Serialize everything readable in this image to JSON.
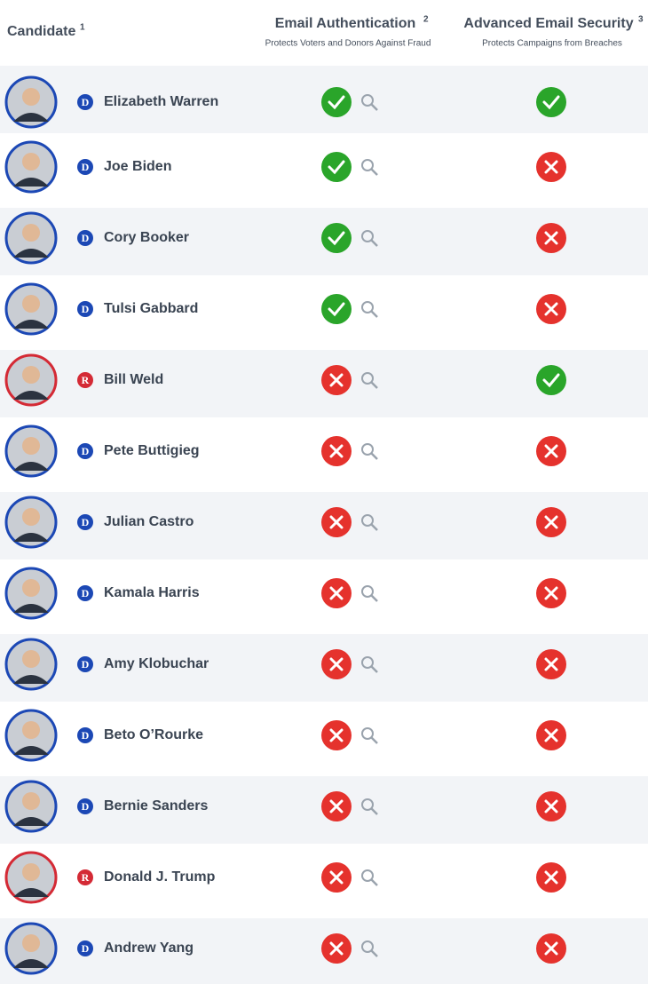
{
  "header": {
    "candidate": "Candidate",
    "candidate_note": "1",
    "email_auth": "Email Authentication",
    "email_auth_note": "2",
    "email_auth_sub": "Protects Voters and Donors Against Fraud",
    "advanced": "Advanced Email Security",
    "advanced_note": "3",
    "advanced_sub": "Protects Campaigns from Breaches"
  },
  "rows": [
    {
      "name": "Elizabeth Warren",
      "party": "D",
      "email_auth": true,
      "advanced": true
    },
    {
      "name": "Joe Biden",
      "party": "D",
      "email_auth": true,
      "advanced": false
    },
    {
      "name": "Cory Booker",
      "party": "D",
      "email_auth": true,
      "advanced": false
    },
    {
      "name": "Tulsi Gabbard",
      "party": "D",
      "email_auth": true,
      "advanced": false
    },
    {
      "name": "Bill Weld",
      "party": "R",
      "email_auth": false,
      "advanced": true
    },
    {
      "name": "Pete Buttigieg",
      "party": "D",
      "email_auth": false,
      "advanced": false
    },
    {
      "name": "Julian Castro",
      "party": "D",
      "email_auth": false,
      "advanced": false
    },
    {
      "name": "Kamala Harris",
      "party": "D",
      "email_auth": false,
      "advanced": false
    },
    {
      "name": "Amy Klobuchar",
      "party": "D",
      "email_auth": false,
      "advanced": false
    },
    {
      "name": "Beto O’Rourke",
      "party": "D",
      "email_auth": false,
      "advanced": false
    },
    {
      "name": "Bernie Sanders",
      "party": "D",
      "email_auth": false,
      "advanced": false
    },
    {
      "name": "Donald J. Trump",
      "party": "R",
      "email_auth": false,
      "advanced": false
    },
    {
      "name": "Andrew Yang",
      "party": "D",
      "email_auth": false,
      "advanced": false
    }
  ]
}
